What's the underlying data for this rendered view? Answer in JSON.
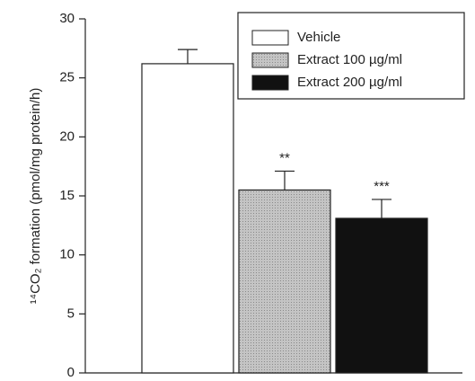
{
  "chart_data": {
    "type": "bar",
    "ylabel": "¹⁴CO₂ formation (pmol/mg protein/h)",
    "categories": [
      null
    ],
    "series": [
      {
        "name": "Vehicle",
        "color": "#ffffff",
        "values": [
          26.2
        ],
        "errors": [
          1.2
        ]
      },
      {
        "name": "Extract 100 µg/ml",
        "color": "#b8b8b8",
        "values": [
          15.5
        ],
        "errors": [
          1.6
        ],
        "annotation": "**"
      },
      {
        "name": "Extract 200 µg/ml",
        "color": "#111111",
        "values": [
          13.1
        ],
        "errors": [
          1.6
        ],
        "annotation": "***"
      }
    ],
    "ylim": [
      0,
      30
    ],
    "yticks": [
      0,
      5,
      10,
      15,
      20,
      25,
      30
    ],
    "grid": false,
    "legend": "upper right"
  }
}
